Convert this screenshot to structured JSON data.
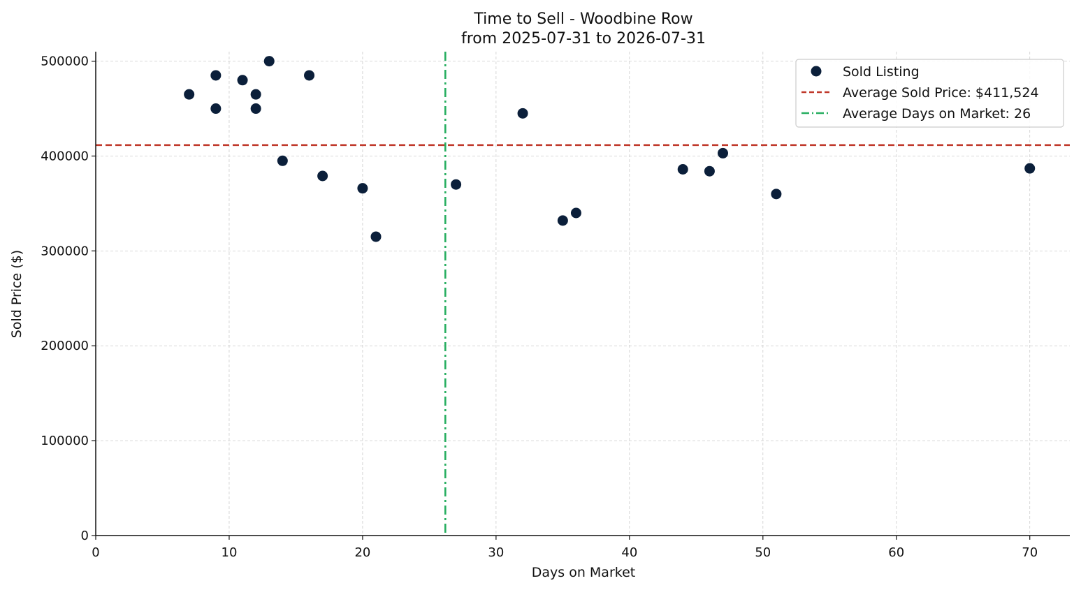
{
  "chart_data": {
    "type": "scatter",
    "title": "Time to Sell - Woodbine Row",
    "subtitle": "from 2025-07-31 to 2026-07-31",
    "xlabel": "Days on Market",
    "ylabel": "Sold Price ($)",
    "xlim": [
      0,
      73
    ],
    "ylim": [
      0,
      510000
    ],
    "xticks": [
      0,
      10,
      20,
      30,
      40,
      50,
      60,
      70
    ],
    "yticks": [
      0,
      100000,
      200000,
      300000,
      400000,
      500000
    ],
    "grid": true,
    "legend_position": "top-right",
    "series": [
      {
        "name": "Sold Listing",
        "color": "#0b1f3a",
        "points": [
          {
            "x": 7,
            "y": 465000
          },
          {
            "x": 9,
            "y": 485000
          },
          {
            "x": 9,
            "y": 450000
          },
          {
            "x": 11,
            "y": 480000
          },
          {
            "x": 12,
            "y": 465000
          },
          {
            "x": 12,
            "y": 450000
          },
          {
            "x": 13,
            "y": 500000
          },
          {
            "x": 14,
            "y": 395000
          },
          {
            "x": 16,
            "y": 485000
          },
          {
            "x": 17,
            "y": 379000
          },
          {
            "x": 20,
            "y": 366000
          },
          {
            "x": 21,
            "y": 315000
          },
          {
            "x": 27,
            "y": 370000
          },
          {
            "x": 32,
            "y": 445000
          },
          {
            "x": 35,
            "y": 332000
          },
          {
            "x": 36,
            "y": 340000
          },
          {
            "x": 44,
            "y": 386000
          },
          {
            "x": 46,
            "y": 384000
          },
          {
            "x": 47,
            "y": 403000
          },
          {
            "x": 51,
            "y": 360000
          },
          {
            "x": 70,
            "y": 387000
          }
        ]
      }
    ],
    "reference_lines": [
      {
        "label": "Average Sold Price: $411,524",
        "orientation": "horizontal",
        "value": 411524,
        "color": "#c0392b",
        "style": "dashed"
      },
      {
        "label": "Average Days on Market: 26",
        "orientation": "vertical",
        "value": 26.2,
        "color": "#27ae60",
        "style": "dashdot"
      }
    ]
  }
}
